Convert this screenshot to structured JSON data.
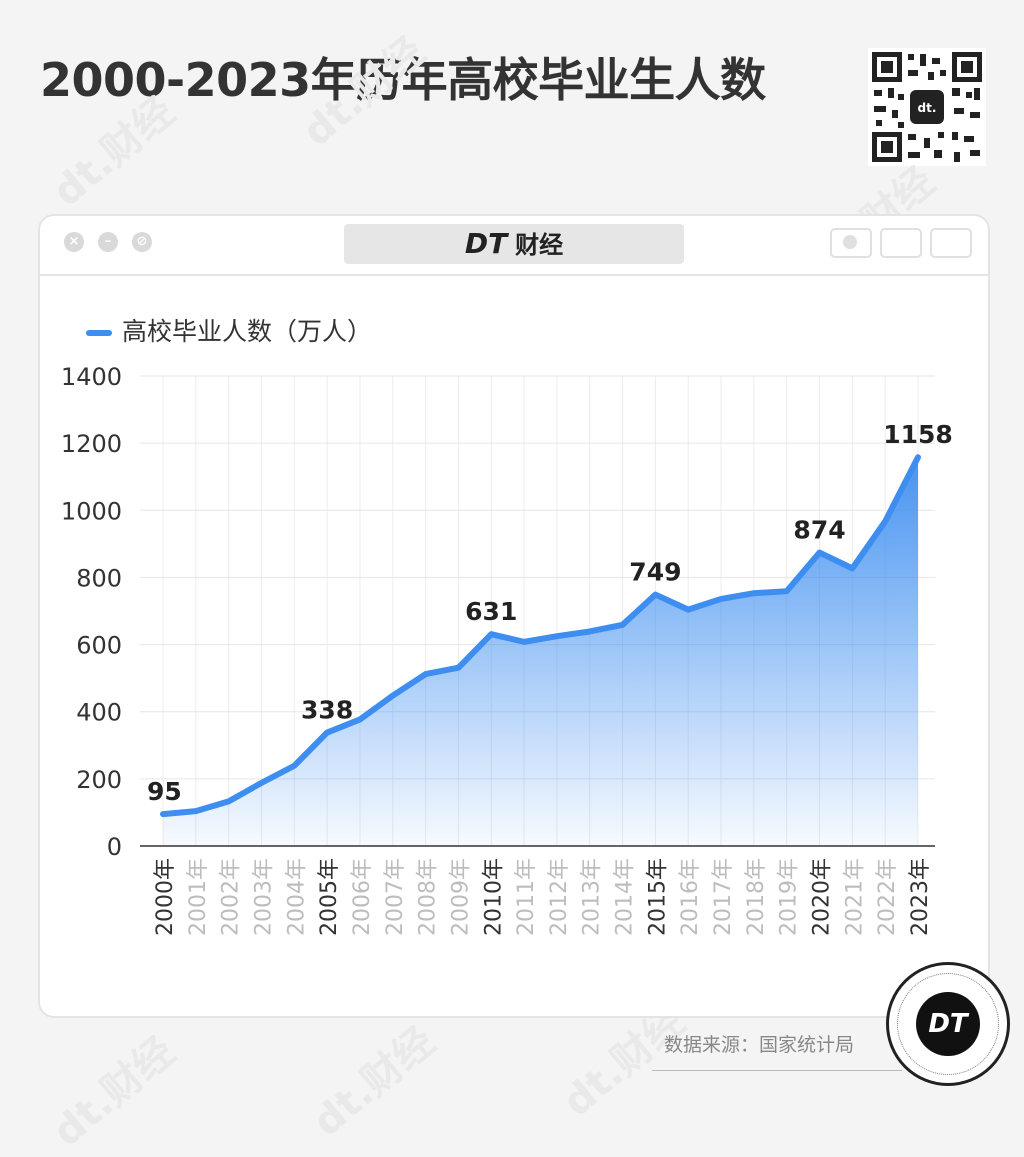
{
  "page": {
    "title": "2000-2023年历年高校毕业生人数"
  },
  "window": {
    "brand_dt": "DT",
    "brand_name": "财经"
  },
  "legend": {
    "label": "高校毕业人数（万人）"
  },
  "source": {
    "text": "数据来源：国家统计局"
  },
  "badge": {
    "text": "DT"
  },
  "watermark": {
    "text": "dt.财经"
  },
  "colors": {
    "line": "#3d8ef0",
    "title": "#333333"
  },
  "chart_data": {
    "type": "area",
    "x": [
      "2000年",
      "2001年",
      "2002年",
      "2003年",
      "2004年",
      "2005年",
      "2006年",
      "2007年",
      "2008年",
      "2009年",
      "2010年",
      "2011年",
      "2012年",
      "2013年",
      "2014年",
      "2015年",
      "2016年",
      "2017年",
      "2018年",
      "2019年",
      "2020年",
      "2021年",
      "2022年",
      "2023年"
    ],
    "series": [
      {
        "name": "高校毕业人数（万人）",
        "values": [
          95,
          104,
          133,
          188,
          239,
          338,
          377,
          448,
          512,
          531,
          631,
          608,
          625,
          639,
          659,
          749,
          704,
          736,
          753,
          759,
          874,
          827,
          967,
          1158
        ]
      }
    ],
    "data_labels": [
      {
        "x": "2000年",
        "value": 95
      },
      {
        "x": "2005年",
        "value": 338
      },
      {
        "x": "2010年",
        "value": 631
      },
      {
        "x": "2015年",
        "value": 749
      },
      {
        "x": "2020年",
        "value": 874
      },
      {
        "x": "2023年",
        "value": 1158
      }
    ],
    "ylim": [
      0,
      1400
    ],
    "yticks": [
      0,
      200,
      400,
      600,
      800,
      1000,
      1200,
      1400
    ],
    "grid": true,
    "legend_position": "top-left"
  }
}
